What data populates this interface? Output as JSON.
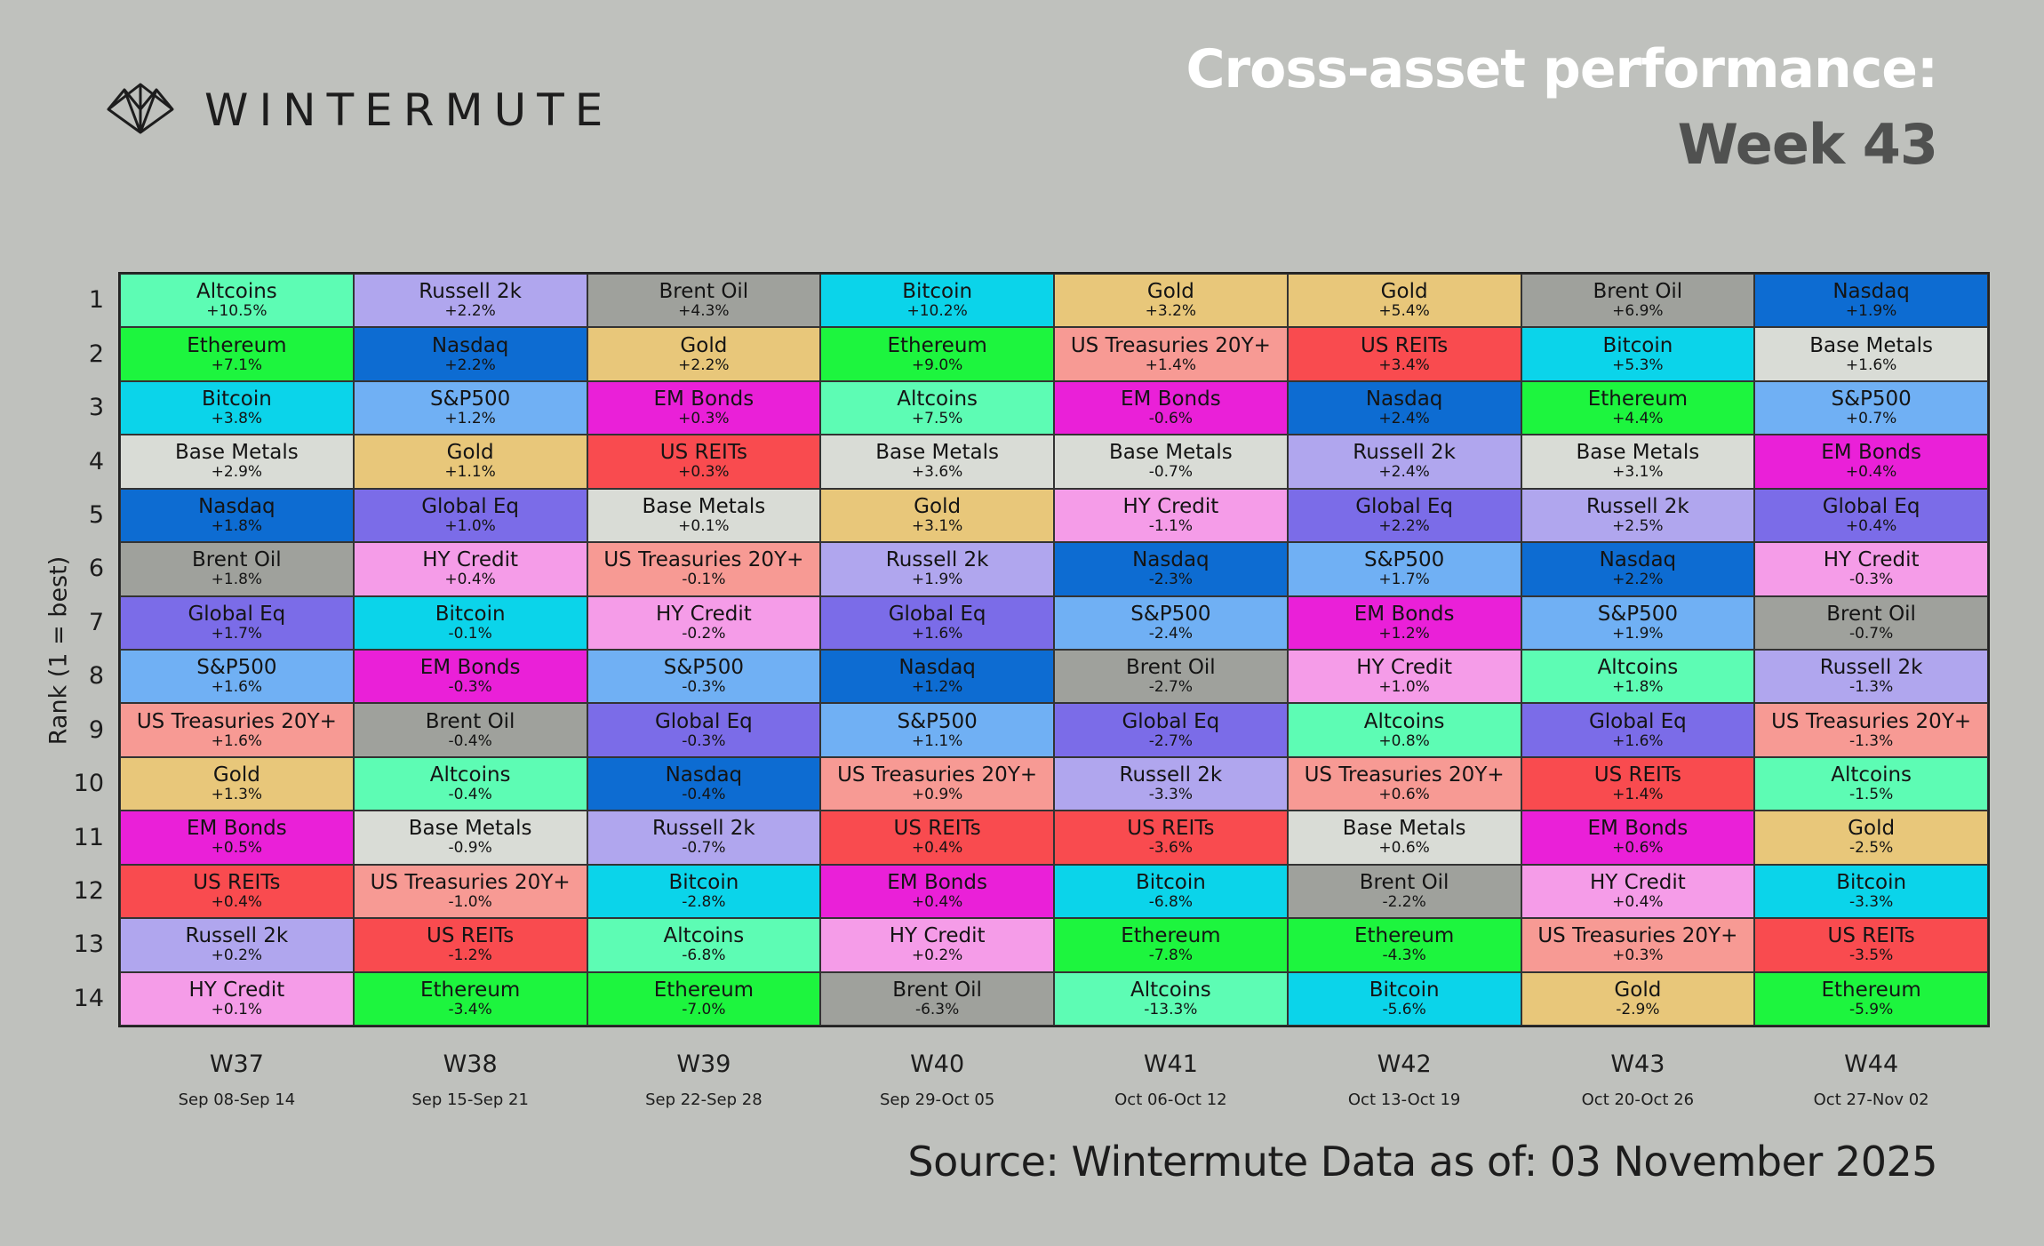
{
  "brand": {
    "name": "WINTERMUTE",
    "logo_icon": "wintermute-logo-icon"
  },
  "header": {
    "title_line1": "Cross-asset performance:",
    "title_line2": "Week 43"
  },
  "footer": {
    "source": "Source: Wintermute  Data as of: 03 November 2025"
  },
  "colors": {
    "Altcoins": "#5dfcb4",
    "Ethereum": "#1df53e",
    "Bitcoin": "#0bd4ea",
    "Base Metals": "#d9dcd6",
    "Nasdaq": "#0d6cd2",
    "Brent Oil": "#9fa19c",
    "Global Eq": "#7b6ce8",
    "S&P500": "#70b0f4",
    "US Treasuries 20Y+": "#f79a94",
    "Gold": "#e8c77a",
    "EM Bonds": "#ea20d8",
    "US REITs": "#f94b4f",
    "Russell 2k": "#b0a6ee",
    "HY Credit": "#f59ce8"
  },
  "chart_data": {
    "type": "table",
    "title": "Cross-asset performance:",
    "subtitle": "Week 43",
    "ylabel": "Rank (1 = best)",
    "ranks": [
      "1",
      "2",
      "3",
      "4",
      "5",
      "6",
      "7",
      "8",
      "9",
      "10",
      "11",
      "12",
      "13",
      "14"
    ],
    "columns": [
      {
        "week": "W37",
        "dates": "Sep 08-Sep 14",
        "cells": [
          {
            "asset": "Altcoins",
            "perf": "+10.5%"
          },
          {
            "asset": "Ethereum",
            "perf": "+7.1%"
          },
          {
            "asset": "Bitcoin",
            "perf": "+3.8%"
          },
          {
            "asset": "Base Metals",
            "perf": "+2.9%"
          },
          {
            "asset": "Nasdaq",
            "perf": "+1.8%"
          },
          {
            "asset": "Brent Oil",
            "perf": "+1.8%"
          },
          {
            "asset": "Global Eq",
            "perf": "+1.7%"
          },
          {
            "asset": "S&P500",
            "perf": "+1.6%"
          },
          {
            "asset": "US Treasuries 20Y+",
            "perf": "+1.6%"
          },
          {
            "asset": "Gold",
            "perf": "+1.3%"
          },
          {
            "asset": "EM Bonds",
            "perf": "+0.5%"
          },
          {
            "asset": "US REITs",
            "perf": "+0.4%"
          },
          {
            "asset": "Russell 2k",
            "perf": "+0.2%"
          },
          {
            "asset": "HY Credit",
            "perf": "+0.1%"
          }
        ]
      },
      {
        "week": "W38",
        "dates": "Sep 15-Sep 21",
        "cells": [
          {
            "asset": "Russell 2k",
            "perf": "+2.2%"
          },
          {
            "asset": "Nasdaq",
            "perf": "+2.2%"
          },
          {
            "asset": "S&P500",
            "perf": "+1.2%"
          },
          {
            "asset": "Gold",
            "perf": "+1.1%"
          },
          {
            "asset": "Global Eq",
            "perf": "+1.0%"
          },
          {
            "asset": "HY Credit",
            "perf": "+0.4%"
          },
          {
            "asset": "Bitcoin",
            "perf": "-0.1%"
          },
          {
            "asset": "EM Bonds",
            "perf": "-0.3%"
          },
          {
            "asset": "Brent Oil",
            "perf": "-0.4%"
          },
          {
            "asset": "Altcoins",
            "perf": "-0.4%"
          },
          {
            "asset": "Base Metals",
            "perf": "-0.9%"
          },
          {
            "asset": "US Treasuries 20Y+",
            "perf": "-1.0%"
          },
          {
            "asset": "US REITs",
            "perf": "-1.2%"
          },
          {
            "asset": "Ethereum",
            "perf": "-3.4%"
          }
        ]
      },
      {
        "week": "W39",
        "dates": "Sep 22-Sep 28",
        "cells": [
          {
            "asset": "Brent Oil",
            "perf": "+4.3%"
          },
          {
            "asset": "Gold",
            "perf": "+2.2%"
          },
          {
            "asset": "EM Bonds",
            "perf": "+0.3%"
          },
          {
            "asset": "US REITs",
            "perf": "+0.3%"
          },
          {
            "asset": "Base Metals",
            "perf": "+0.1%"
          },
          {
            "asset": "US Treasuries 20Y+",
            "perf": "-0.1%"
          },
          {
            "asset": "HY Credit",
            "perf": "-0.2%"
          },
          {
            "asset": "S&P500",
            "perf": "-0.3%"
          },
          {
            "asset": "Global Eq",
            "perf": "-0.3%"
          },
          {
            "asset": "Nasdaq",
            "perf": "-0.4%"
          },
          {
            "asset": "Russell 2k",
            "perf": "-0.7%"
          },
          {
            "asset": "Bitcoin",
            "perf": "-2.8%"
          },
          {
            "asset": "Altcoins",
            "perf": "-6.8%"
          },
          {
            "asset": "Ethereum",
            "perf": "-7.0%"
          }
        ]
      },
      {
        "week": "W40",
        "dates": "Sep 29-Oct 05",
        "cells": [
          {
            "asset": "Bitcoin",
            "perf": "+10.2%"
          },
          {
            "asset": "Ethereum",
            "perf": "+9.0%"
          },
          {
            "asset": "Altcoins",
            "perf": "+7.5%"
          },
          {
            "asset": "Base Metals",
            "perf": "+3.6%"
          },
          {
            "asset": "Gold",
            "perf": "+3.1%"
          },
          {
            "asset": "Russell 2k",
            "perf": "+1.9%"
          },
          {
            "asset": "Global Eq",
            "perf": "+1.6%"
          },
          {
            "asset": "Nasdaq",
            "perf": "+1.2%"
          },
          {
            "asset": "S&P500",
            "perf": "+1.1%"
          },
          {
            "asset": "US Treasuries 20Y+",
            "perf": "+0.9%"
          },
          {
            "asset": "US REITs",
            "perf": "+0.4%"
          },
          {
            "asset": "EM Bonds",
            "perf": "+0.4%"
          },
          {
            "asset": "HY Credit",
            "perf": "+0.2%"
          },
          {
            "asset": "Brent Oil",
            "perf": "-6.3%"
          }
        ]
      },
      {
        "week": "W41",
        "dates": "Oct 06-Oct 12",
        "cells": [
          {
            "asset": "Gold",
            "perf": "+3.2%"
          },
          {
            "asset": "US Treasuries 20Y+",
            "perf": "+1.4%"
          },
          {
            "asset": "EM Bonds",
            "perf": "-0.6%"
          },
          {
            "asset": "Base Metals",
            "perf": "-0.7%"
          },
          {
            "asset": "HY Credit",
            "perf": "-1.1%"
          },
          {
            "asset": "Nasdaq",
            "perf": "-2.3%"
          },
          {
            "asset": "S&P500",
            "perf": "-2.4%"
          },
          {
            "asset": "Brent Oil",
            "perf": "-2.7%"
          },
          {
            "asset": "Global Eq",
            "perf": "-2.7%"
          },
          {
            "asset": "Russell 2k",
            "perf": "-3.3%"
          },
          {
            "asset": "US REITs",
            "perf": "-3.6%"
          },
          {
            "asset": "Bitcoin",
            "perf": "-6.8%"
          },
          {
            "asset": "Ethereum",
            "perf": "-7.8%"
          },
          {
            "asset": "Altcoins",
            "perf": "-13.3%"
          }
        ]
      },
      {
        "week": "W42",
        "dates": "Oct 13-Oct 19",
        "cells": [
          {
            "asset": "Gold",
            "perf": "+5.4%"
          },
          {
            "asset": "US REITs",
            "perf": "+3.4%"
          },
          {
            "asset": "Nasdaq",
            "perf": "+2.4%"
          },
          {
            "asset": "Russell 2k",
            "perf": "+2.4%"
          },
          {
            "asset": "Global Eq",
            "perf": "+2.2%"
          },
          {
            "asset": "S&P500",
            "perf": "+1.7%"
          },
          {
            "asset": "EM Bonds",
            "perf": "+1.2%"
          },
          {
            "asset": "HY Credit",
            "perf": "+1.0%"
          },
          {
            "asset": "Altcoins",
            "perf": "+0.8%"
          },
          {
            "asset": "US Treasuries 20Y+",
            "perf": "+0.6%"
          },
          {
            "asset": "Base Metals",
            "perf": "+0.6%"
          },
          {
            "asset": "Brent Oil",
            "perf": "-2.2%"
          },
          {
            "asset": "Ethereum",
            "perf": "-4.3%"
          },
          {
            "asset": "Bitcoin",
            "perf": "-5.6%"
          }
        ]
      },
      {
        "week": "W43",
        "dates": "Oct 20-Oct 26",
        "cells": [
          {
            "asset": "Brent Oil",
            "perf": "+6.9%"
          },
          {
            "asset": "Bitcoin",
            "perf": "+5.3%"
          },
          {
            "asset": "Ethereum",
            "perf": "+4.4%"
          },
          {
            "asset": "Base Metals",
            "perf": "+3.1%"
          },
          {
            "asset": "Russell 2k",
            "perf": "+2.5%"
          },
          {
            "asset": "Nasdaq",
            "perf": "+2.2%"
          },
          {
            "asset": "S&P500",
            "perf": "+1.9%"
          },
          {
            "asset": "Altcoins",
            "perf": "+1.8%"
          },
          {
            "asset": "Global Eq",
            "perf": "+1.6%"
          },
          {
            "asset": "US REITs",
            "perf": "+1.4%"
          },
          {
            "asset": "EM Bonds",
            "perf": "+0.6%"
          },
          {
            "asset": "HY Credit",
            "perf": "+0.4%"
          },
          {
            "asset": "US Treasuries 20Y+",
            "perf": "+0.3%"
          },
          {
            "asset": "Gold",
            "perf": "-2.9%"
          }
        ]
      },
      {
        "week": "W44",
        "dates": "Oct 27-Nov 02",
        "cells": [
          {
            "asset": "Nasdaq",
            "perf": "+1.9%"
          },
          {
            "asset": "Base Metals",
            "perf": "+1.6%"
          },
          {
            "asset": "S&P500",
            "perf": "+0.7%"
          },
          {
            "asset": "EM Bonds",
            "perf": "+0.4%"
          },
          {
            "asset": "Global Eq",
            "perf": "+0.4%"
          },
          {
            "asset": "HY Credit",
            "perf": "-0.3%"
          },
          {
            "asset": "Brent Oil",
            "perf": "-0.7%"
          },
          {
            "asset": "Russell 2k",
            "perf": "-1.3%"
          },
          {
            "asset": "US Treasuries 20Y+",
            "perf": "-1.3%"
          },
          {
            "asset": "Altcoins",
            "perf": "-1.5%"
          },
          {
            "asset": "Gold",
            "perf": "-2.5%"
          },
          {
            "asset": "Bitcoin",
            "perf": "-3.3%"
          },
          {
            "asset": "US REITs",
            "perf": "-3.5%"
          },
          {
            "asset": "Ethereum",
            "perf": "-5.9%"
          }
        ]
      }
    ]
  }
}
